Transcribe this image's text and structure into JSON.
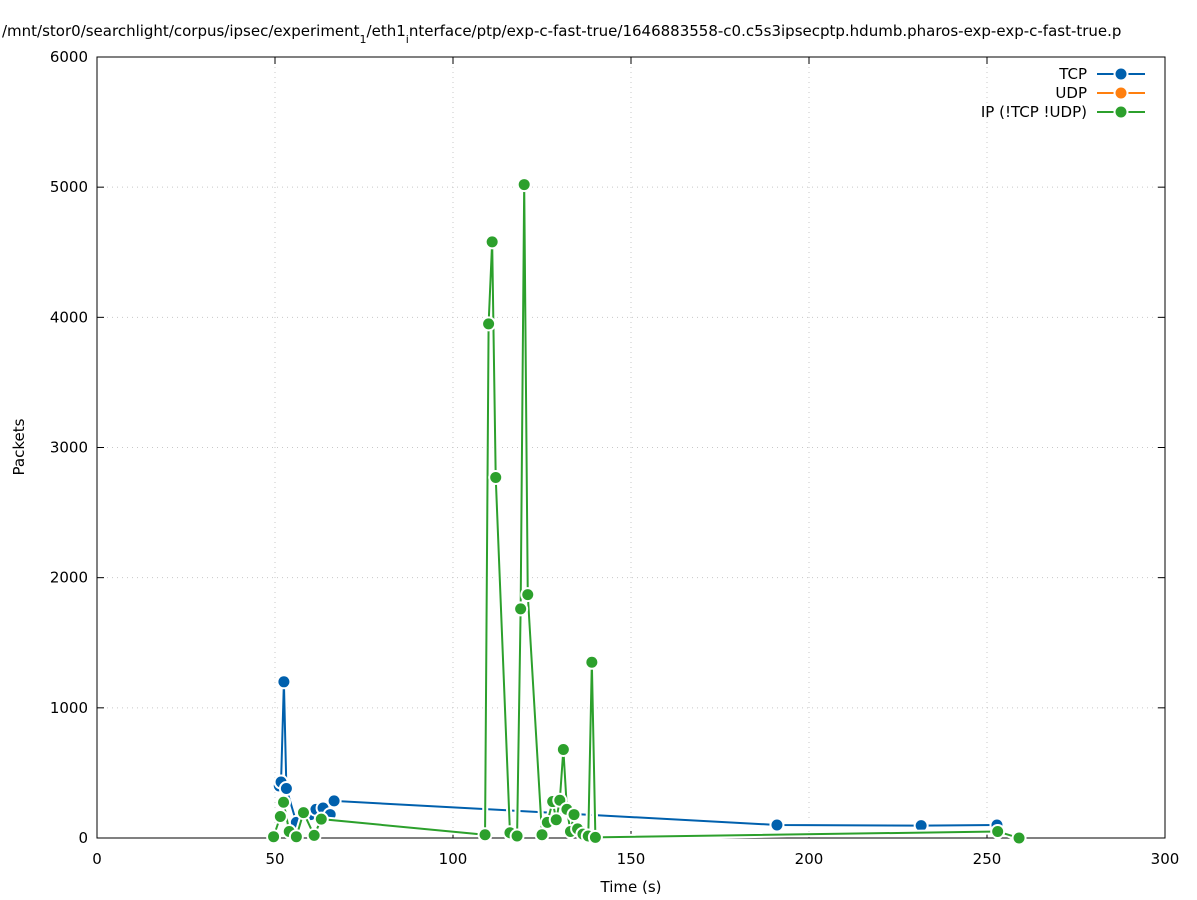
{
  "chart_data": {
    "type": "line",
    "title": "/mnt/stor0/searchlight/corpus/ipsec/experiment",
    "title_parts": [
      {
        "text": "/mnt/stor0/searchlight/corpus/ipsec/experiment",
        "sub": false
      },
      {
        "text": "1",
        "sub": true
      },
      {
        "text": "/eth1",
        "sub": false
      },
      {
        "text": "i",
        "sub": true
      },
      {
        "text": "nterface/ptp/exp-c-fast-true/1646883558-c0.c5s3ipsecptp.hdumb.pharos-exp-exp-c-fast-true.p",
        "sub": false
      }
    ],
    "xlabel": "Time (s)",
    "ylabel": "Packets",
    "xlim": [
      0,
      300
    ],
    "ylim": [
      0,
      6000
    ],
    "xticks": [
      0,
      50,
      100,
      150,
      200,
      250,
      300
    ],
    "yticks": [
      0,
      1000,
      2000,
      3000,
      4000,
      5000,
      6000
    ],
    "grid": true,
    "legend_position": "top-right",
    "series": [
      {
        "name": "TCP",
        "color": "#0060ad",
        "points": [
          [
            51.2,
            400
          ],
          [
            51.7,
            430
          ],
          [
            52.5,
            1200
          ],
          [
            53.2,
            380
          ],
          [
            56,
            120
          ],
          [
            58,
            200
          ],
          [
            60,
            180
          ],
          [
            61.5,
            220
          ],
          [
            63.5,
            230
          ],
          [
            65.5,
            180
          ],
          [
            66.6,
            285
          ],
          [
            191,
            100
          ],
          [
            231.5,
            95
          ],
          [
            252.8,
            100
          ]
        ]
      },
      {
        "name": "UDP",
        "color": "#ff7f0e",
        "points": []
      },
      {
        "name": "IP (!TCP  !UDP)",
        "color": "#2ca02c",
        "points": [
          [
            49.6,
            10
          ],
          [
            51.5,
            165
          ],
          [
            52.4,
            275
          ],
          [
            54,
            50
          ],
          [
            56,
            10
          ],
          [
            58,
            195
          ],
          [
            61,
            20
          ],
          [
            63,
            145
          ],
          [
            109,
            25
          ],
          [
            110,
            3950
          ],
          [
            111,
            4580
          ],
          [
            112,
            2770
          ],
          [
            116,
            40
          ],
          [
            118,
            15
          ],
          [
            119,
            1760
          ],
          [
            120,
            5020
          ],
          [
            121,
            1870
          ],
          [
            125,
            25
          ],
          [
            126.5,
            120
          ],
          [
            128,
            280
          ],
          [
            129,
            140
          ],
          [
            130,
            290
          ],
          [
            131,
            680
          ],
          [
            132,
            220
          ],
          [
            133,
            50
          ],
          [
            134,
            180
          ],
          [
            135,
            70
          ],
          [
            136.5,
            30
          ],
          [
            138,
            15
          ],
          [
            139,
            1350
          ],
          [
            140,
            5
          ],
          [
            253,
            50
          ],
          [
            259,
            0
          ]
        ]
      }
    ]
  }
}
